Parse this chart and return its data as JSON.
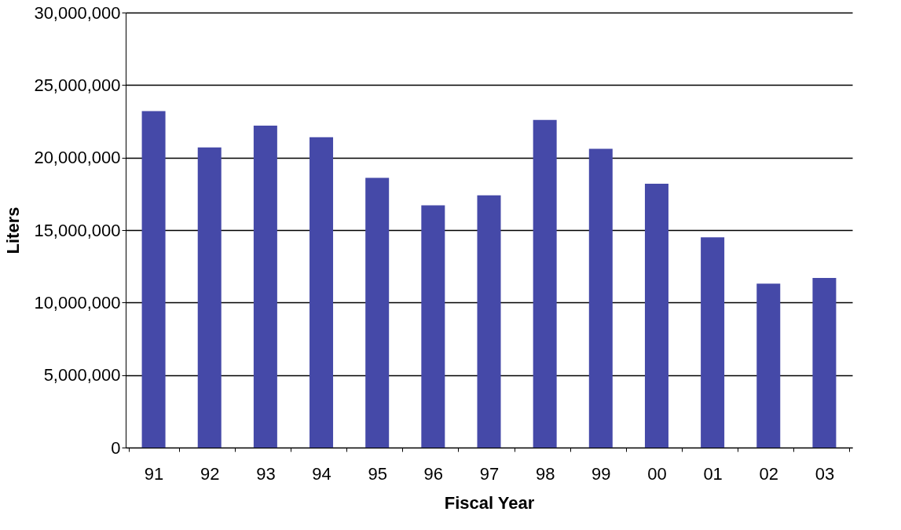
{
  "chart_data": {
    "type": "bar",
    "xlabel": "Fiscal Year",
    "ylabel": "Liters",
    "categories": [
      "91",
      "92",
      "93",
      "94",
      "95",
      "96",
      "97",
      "98",
      "99",
      "00",
      "01",
      "02",
      "03"
    ],
    "values": [
      23200000,
      20700000,
      22200000,
      21400000,
      18600000,
      16700000,
      17400000,
      22600000,
      20600000,
      18200000,
      14500000,
      11300000,
      11700000
    ],
    "color": "#4549a8",
    "ylim": [
      0,
      30000000
    ],
    "yticks": [
      {
        "value": 0,
        "label": "0"
      },
      {
        "value": 5000000,
        "label": "5,000,000"
      },
      {
        "value": 10000000,
        "label": "10,000,000"
      },
      {
        "value": 15000000,
        "label": "15,000,000"
      },
      {
        "value": 20000000,
        "label": "20,000,000"
      },
      {
        "value": 25000000,
        "label": "25,000,000"
      },
      {
        "value": 30000000,
        "label": "30,000,000"
      }
    ],
    "grid": "y"
  }
}
